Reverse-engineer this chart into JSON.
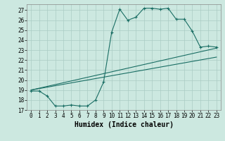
{
  "xlabel": "Humidex (Indice chaleur)",
  "bg_color": "#cce8e0",
  "grid_color": "#aaccc4",
  "line_color": "#1a6e64",
  "xlim": [
    -0.5,
    23.5
  ],
  "ylim": [
    17,
    27.6
  ],
  "yticks": [
    17,
    18,
    19,
    20,
    21,
    22,
    23,
    24,
    25,
    26,
    27
  ],
  "xticks": [
    0,
    1,
    2,
    3,
    4,
    5,
    6,
    7,
    8,
    9,
    10,
    11,
    12,
    13,
    14,
    15,
    16,
    17,
    18,
    19,
    20,
    21,
    22,
    23
  ],
  "line1_x": [
    0,
    1,
    2,
    3,
    4,
    5,
    6,
    7,
    8,
    9,
    10,
    11,
    12,
    13,
    14,
    15,
    16,
    17,
    18,
    19,
    20,
    21,
    22,
    23
  ],
  "line1_y": [
    18.9,
    18.9,
    18.4,
    17.4,
    17.4,
    17.5,
    17.4,
    17.4,
    18.0,
    19.8,
    24.8,
    27.1,
    26.0,
    26.3,
    27.2,
    27.2,
    27.1,
    27.2,
    26.1,
    26.1,
    24.9,
    23.3,
    23.4,
    23.3
  ],
  "line2_x": [
    0,
    23
  ],
  "line2_y": [
    19.0,
    23.2
  ],
  "line3_x": [
    0,
    23
  ],
  "line3_y": [
    19.0,
    22.3
  ],
  "xlabel_fontsize": 7,
  "tick_fontsize": 5.5
}
